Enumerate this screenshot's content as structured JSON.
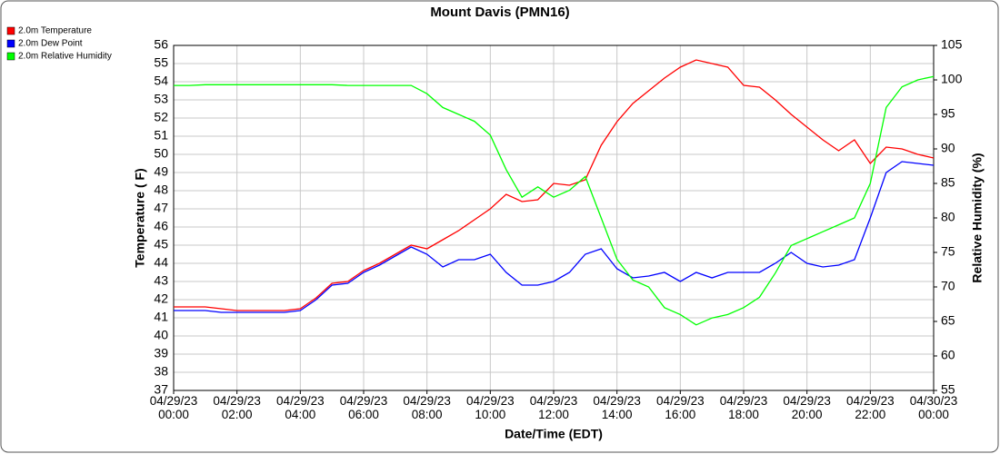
{
  "chart_data": {
    "type": "line",
    "title": "Mount Davis (PMN16)",
    "x_label": "Date/Time (EDT)",
    "y_label": "Temperature ( F)",
    "y2_label": "Relative Humidity (%)",
    "grid": true,
    "legend": "top-left",
    "xlim": [
      "04/29/23 00:00",
      "04/30/23 00:00"
    ],
    "xticks": [
      "04/29/23\n00:00",
      "04/29/23\n02:00",
      "04/29/23\n04:00",
      "04/29/23\n06:00",
      "04/29/23\n08:00",
      "04/29/23\n10:00",
      "04/29/23\n12:00",
      "04/29/23\n14:00",
      "04/29/23\n16:00",
      "04/29/23\n18:00",
      "04/29/23\n20:00",
      "04/29/23\n22:00",
      "04/30/23\n00:00"
    ],
    "ylim": [
      37,
      56
    ],
    "yticks": [
      37,
      38,
      39,
      40,
      41,
      42,
      43,
      44,
      45,
      46,
      47,
      48,
      49,
      50,
      51,
      52,
      53,
      54,
      55,
      56
    ],
    "y2lim": [
      55,
      105
    ],
    "y2ticks": [
      55,
      60,
      65,
      70,
      75,
      80,
      85,
      90,
      95,
      100,
      105
    ],
    "x": [
      "04/29/23 00:00",
      "04/29/23 00:30",
      "04/29/23 01:00",
      "04/29/23 01:30",
      "04/29/23 02:00",
      "04/29/23 02:30",
      "04/29/23 03:00",
      "04/29/23 03:30",
      "04/29/23 04:00",
      "04/29/23 04:30",
      "04/29/23 05:00",
      "04/29/23 05:30",
      "04/29/23 06:00",
      "04/29/23 06:30",
      "04/29/23 07:00",
      "04/29/23 07:30",
      "04/29/23 08:00",
      "04/29/23 08:30",
      "04/29/23 09:00",
      "04/29/23 09:30",
      "04/29/23 10:00",
      "04/29/23 10:30",
      "04/29/23 11:00",
      "04/29/23 11:30",
      "04/29/23 12:00",
      "04/29/23 12:30",
      "04/29/23 13:00",
      "04/29/23 13:30",
      "04/29/23 14:00",
      "04/29/23 14:30",
      "04/29/23 15:00",
      "04/29/23 15:30",
      "04/29/23 16:00",
      "04/29/23 16:30",
      "04/29/23 17:00",
      "04/29/23 17:30",
      "04/29/23 18:00",
      "04/29/23 18:30",
      "04/29/23 19:00",
      "04/29/23 19:30",
      "04/29/23 20:00",
      "04/29/23 20:30",
      "04/29/23 21:00",
      "04/29/23 21:30",
      "04/29/23 22:00",
      "04/29/23 22:30",
      "04/29/23 23:00",
      "04/29/23 23:30",
      "04/30/23 00:00"
    ],
    "series": [
      {
        "name": "2.0m Temperature",
        "color": "#ff0000",
        "values": [
          41.6,
          41.6,
          41.6,
          41.5,
          41.4,
          41.4,
          41.4,
          41.4,
          41.5,
          42.1,
          42.9,
          43.0,
          43.6,
          44.0,
          44.5,
          45.0,
          44.8,
          45.3,
          45.8,
          46.4,
          47.0,
          47.8,
          47.4,
          47.5,
          48.4,
          48.3,
          48.6,
          50.5,
          51.8,
          52.8,
          53.5,
          54.2,
          54.8,
          55.2,
          55.0,
          54.8,
          53.8,
          53.7,
          53.0,
          52.2,
          51.5,
          50.8,
          50.2,
          50.8,
          49.5,
          50.4,
          50.3,
          50.0,
          49.8
        ]
      },
      {
        "name": "2.0m Dew Point",
        "color": "#0000ff",
        "values": [
          41.4,
          41.4,
          41.4,
          41.3,
          41.3,
          41.3,
          41.3,
          41.3,
          41.4,
          42.0,
          42.8,
          42.9,
          43.5,
          43.9,
          44.4,
          44.9,
          44.5,
          43.8,
          44.2,
          44.2,
          44.5,
          43.5,
          42.8,
          42.8,
          43.0,
          43.5,
          44.5,
          44.8,
          43.7,
          43.2,
          43.3,
          43.5,
          43.0,
          43.5,
          43.2,
          43.5,
          43.5,
          43.5,
          44.0,
          44.6,
          44.0,
          43.8,
          43.9,
          44.2,
          46.5,
          49.0,
          49.6,
          49.5,
          49.4
        ]
      },
      {
        "name": "2.0m Relative Humidity",
        "color": "#00ff00",
        "axis": "y2",
        "values": [
          99.2,
          99.2,
          99.3,
          99.3,
          99.3,
          99.3,
          99.3,
          99.3,
          99.3,
          99.3,
          99.3,
          99.2,
          99.2,
          99.2,
          99.2,
          99.2,
          98,
          96,
          95,
          94,
          92,
          87,
          83,
          84.5,
          83,
          84,
          86,
          80,
          74,
          71,
          70,
          67,
          66,
          64.5,
          65.5,
          66,
          67,
          68.5,
          72,
          76,
          77,
          78,
          79,
          80,
          85,
          96,
          99,
          100,
          100.5
        ]
      }
    ]
  }
}
